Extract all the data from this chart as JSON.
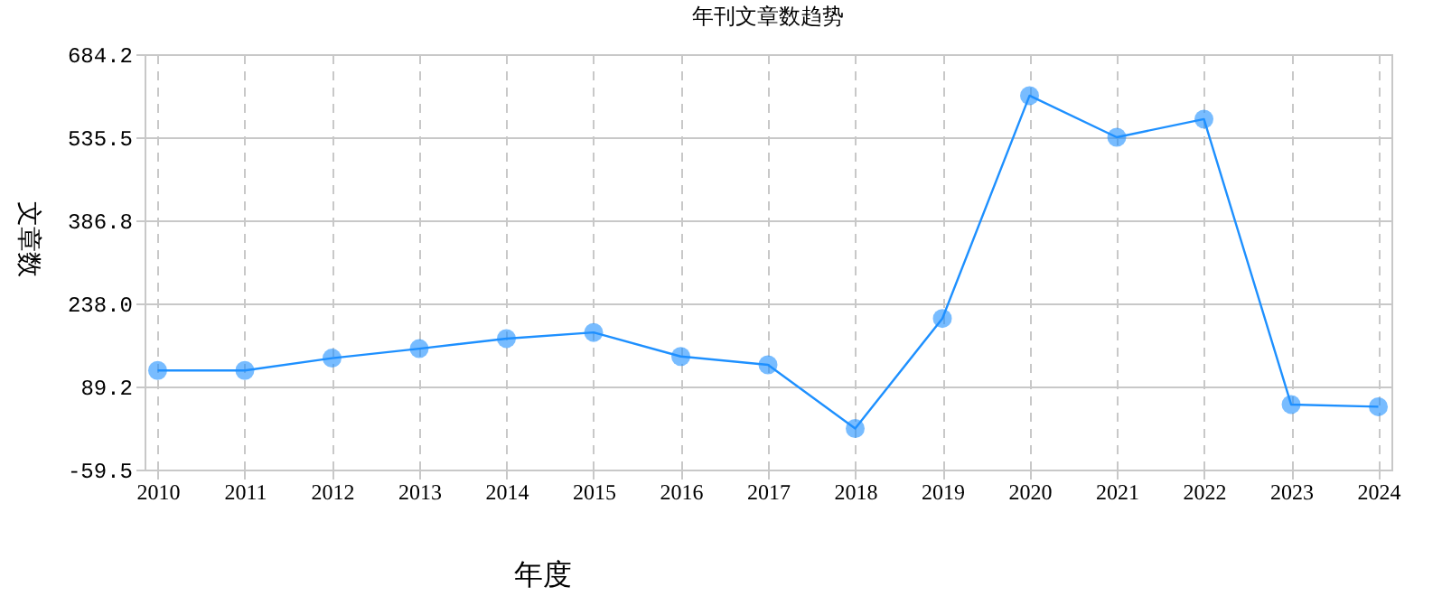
{
  "chart_data": {
    "type": "line",
    "title": "年刊文章数趋势",
    "xlabel": "年度",
    "ylabel": "文章数",
    "categories": [
      "2010",
      "2011",
      "2012",
      "2013",
      "2014",
      "2015",
      "2016",
      "2017",
      "2018",
      "2019",
      "2020",
      "2021",
      "2022",
      "2023",
      "2024"
    ],
    "series": [
      {
        "color": "#1e90ff",
        "values": [
          118,
          118,
          140,
          157,
          175,
          186,
          143,
          128,
          14,
          211,
          610,
          535.5,
          568,
          57,
          53
        ]
      }
    ],
    "ylim": [
      -59.5,
      684.2
    ],
    "yticks": [
      -59.5,
      89.2,
      {
        "value": 238,
        "label": "238.0"
      },
      386.8,
      535.5,
      684.2
    ],
    "grid": true,
    "marker": "circle",
    "line_style": "solid"
  }
}
